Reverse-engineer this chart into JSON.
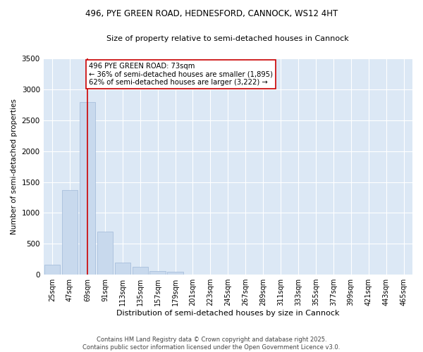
{
  "title_line1": "496, PYE GREEN ROAD, HEDNESFORD, CANNOCK, WS12 4HT",
  "title_line2": "Size of property relative to semi-detached houses in Cannock",
  "xlabel": "Distribution of semi-detached houses by size in Cannock",
  "ylabel": "Number of semi-detached properties",
  "categories": [
    "25sqm",
    "47sqm",
    "69sqm",
    "91sqm",
    "113sqm",
    "135sqm",
    "157sqm",
    "179sqm",
    "201sqm",
    "223sqm",
    "245sqm",
    "267sqm",
    "289sqm",
    "311sqm",
    "333sqm",
    "355sqm",
    "377sqm",
    "399sqm",
    "421sqm",
    "443sqm",
    "465sqm"
  ],
  "values": [
    160,
    1370,
    2790,
    700,
    200,
    130,
    55,
    45,
    0,
    0,
    0,
    0,
    0,
    0,
    0,
    0,
    0,
    0,
    0,
    0,
    0
  ],
  "bar_color": "#c8d9ed",
  "bar_edge_color": "#a0b8d8",
  "vline_x": 2.0,
  "vline_color": "#cc0000",
  "annotation_text": "496 PYE GREEN ROAD: 73sqm\n← 36% of semi-detached houses are smaller (1,895)\n62% of semi-detached houses are larger (3,222) →",
  "annotation_box_color": "#ffffff",
  "annotation_box_edge": "#cc0000",
  "ylim": [
    0,
    3500
  ],
  "yticks": [
    0,
    500,
    1000,
    1500,
    2000,
    2500,
    3000,
    3500
  ],
  "background_color": "#dce8f5",
  "grid_color": "#ffffff",
  "title1_fontsize": 8.5,
  "title2_fontsize": 8.0,
  "footer_line1": "Contains HM Land Registry data © Crown copyright and database right 2025.",
  "footer_line2": "Contains public sector information licensed under the Open Government Licence v3.0."
}
